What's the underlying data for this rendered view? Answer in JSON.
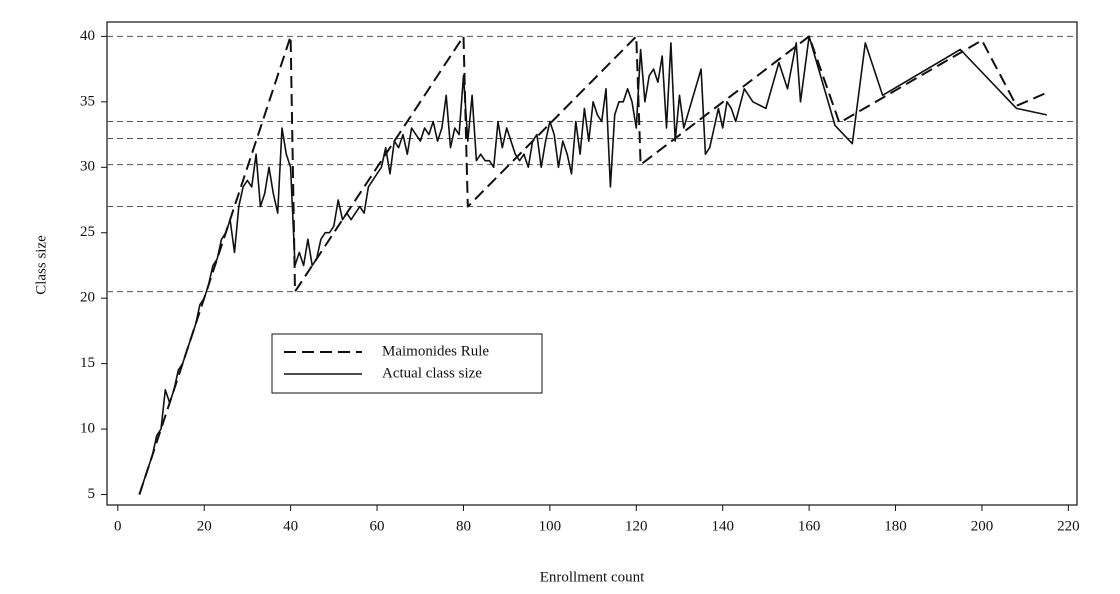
{
  "chart_data": {
    "type": "line",
    "x_label": "Enrollment count",
    "y_label": "Class size",
    "xlim": [
      -2.5,
      222
    ],
    "ylim": [
      4.2,
      41.1
    ],
    "xticks": [
      0,
      20,
      40,
      60,
      80,
      100,
      120,
      140,
      160,
      180,
      200,
      220
    ],
    "yticks": [
      5,
      10,
      15,
      20,
      25,
      30,
      35,
      40
    ],
    "hlines": [
      20.5,
      27,
      30.2,
      32.2,
      33.5,
      40
    ],
    "legend": "upper left",
    "series": [
      {
        "name": "Maimonides Rule",
        "color": "#111111",
        "dash": true,
        "x": [
          5,
          40,
          41,
          80,
          81,
          120,
          121,
          160,
          167,
          200,
          208,
          215
        ],
        "values": [
          5,
          40,
          20.5,
          40,
          27,
          40,
          30.2,
          40,
          33.4,
          39.7,
          34.7,
          35.7
        ]
      },
      {
        "name": "Actual class size",
        "color": "#111111",
        "dash": false,
        "x": [
          5,
          6,
          7,
          8,
          9,
          10,
          11,
          12,
          13,
          14,
          15,
          16,
          17,
          18,
          19,
          20,
          21,
          22,
          23,
          24,
          25,
          26,
          27,
          28,
          29,
          30,
          31,
          32,
          33,
          34,
          35,
          36,
          37,
          38,
          39,
          40,
          41,
          42,
          43,
          44,
          45,
          46,
          47,
          48,
          49,
          50,
          51,
          52,
          53,
          54,
          55,
          56,
          57,
          58,
          59,
          60,
          61,
          62,
          63,
          64,
          65,
          66,
          67,
          68,
          69,
          70,
          71,
          72,
          73,
          74,
          75,
          76,
          77,
          78,
          79,
          80,
          81,
          82,
          83,
          84,
          85,
          86,
          87,
          88,
          89,
          90,
          91,
          92,
          93,
          94,
          95,
          96,
          97,
          98,
          99,
          100,
          101,
          102,
          103,
          104,
          105,
          106,
          107,
          108,
          109,
          110,
          111,
          112,
          113,
          114,
          115,
          116,
          117,
          118,
          119,
          120,
          121,
          122,
          123,
          124,
          125,
          126,
          127,
          128,
          129,
          130,
          131,
          135,
          136,
          137,
          138,
          139,
          140,
          141,
          142,
          143,
          145,
          147,
          150,
          153,
          155,
          157,
          158,
          160,
          166,
          170,
          173,
          177,
          195,
          208,
          215
        ],
        "values": [
          5,
          6,
          7,
          8,
          9.5,
          10,
          13,
          12,
          13,
          14.5,
          15,
          16,
          17,
          18,
          19.5,
          20,
          21,
          22.5,
          23,
          24.5,
          25,
          26,
          23.5,
          27,
          28.5,
          29,
          28.5,
          31,
          27,
          28,
          30,
          28,
          26.5,
          33,
          31,
          30,
          22.5,
          23.5,
          22.5,
          24.5,
          22.5,
          23,
          24.5,
          25,
          25,
          25.5,
          27.5,
          26,
          26.5,
          26,
          26.5,
          27,
          26.5,
          28.5,
          29,
          29.5,
          30,
          31.5,
          29.5,
          32,
          31.5,
          32.5,
          31,
          33,
          32.5,
          32,
          33,
          32.5,
          33.5,
          32,
          33,
          35.5,
          31.5,
          33,
          32.5,
          37,
          32,
          35.5,
          30.5,
          31,
          30.5,
          30.5,
          30,
          33.5,
          31.5,
          33,
          32,
          31,
          30.5,
          31,
          30,
          32,
          32.5,
          30,
          32,
          33.5,
          32.5,
          30,
          32,
          31,
          29.5,
          33.5,
          31,
          34.5,
          32,
          35,
          34,
          33.5,
          36,
          28.5,
          34,
          35,
          35,
          36,
          35,
          33,
          39,
          35,
          37,
          37.5,
          36.5,
          38.5,
          33,
          39.5,
          32,
          35.5,
          33,
          37.5,
          31,
          31.5,
          33,
          34.5,
          33,
          35,
          34.5,
          33.5,
          36,
          35,
          34.5,
          38,
          36,
          39.5,
          35,
          40,
          33.2,
          31.8,
          39.5,
          35.5,
          39,
          34.5,
          34
        ]
      }
    ]
  }
}
